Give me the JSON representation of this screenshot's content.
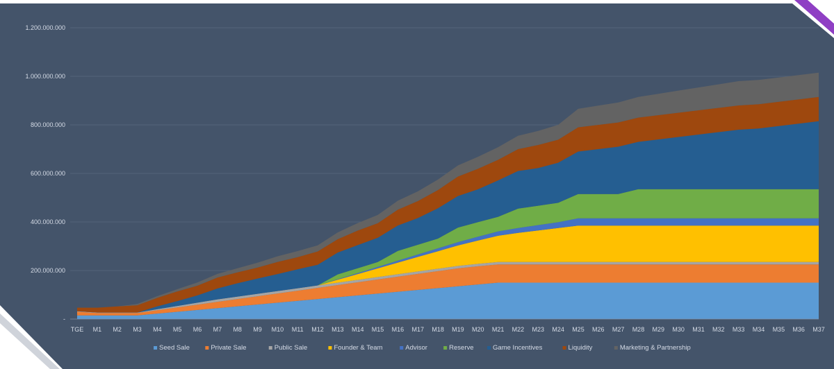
{
  "chart_data": {
    "type": "area",
    "stacked": true,
    "title": "",
    "xlabel": "",
    "ylabel": "",
    "ylim": [
      0,
      1200000000
    ],
    "yticks": [
      0,
      200000000,
      400000000,
      600000000,
      800000000,
      1000000000,
      1200000000
    ],
    "ytick_labels": [
      "-",
      "200.000.000",
      "400.000.000",
      "600.000.000",
      "800.000.000",
      "1.000.000.000",
      "1.200.000.000"
    ],
    "grid": true,
    "legend_position": "bottom",
    "x": [
      "TGE",
      "M1",
      "M2",
      "M3",
      "M4",
      "M5",
      "M6",
      "M7",
      "M8",
      "M9",
      "M10",
      "M11",
      "M12",
      "M13",
      "M14",
      "M15",
      "M16",
      "M17",
      "M18",
      "M19",
      "M20",
      "M21",
      "M22",
      "M23",
      "M24",
      "M25",
      "M26",
      "M27",
      "M28",
      "M29",
      "M30",
      "M31",
      "M32",
      "M33",
      "M34",
      "M35",
      "M36",
      "M37"
    ],
    "series": [
      {
        "name": "Seed Sale",
        "color": "#5b9bd5",
        "values": [
          15000000,
          15000000,
          15000000,
          15000000,
          22500000,
          30000000,
          37500000,
          45000000,
          52500000,
          60000000,
          67500000,
          75000000,
          82500000,
          90000000,
          97500000,
          105000000,
          112500000,
          120000000,
          127500000,
          135000000,
          142500000,
          150000000,
          150000000,
          150000000,
          150000000,
          150000000,
          150000000,
          150000000,
          150000000,
          150000000,
          150000000,
          150000000,
          150000000,
          150000000,
          150000000,
          150000000,
          150000000,
          150000000
        ]
      },
      {
        "name": "Private Sale",
        "color": "#ed7d31",
        "values": [
          15000000,
          10000000,
          10000000,
          10000000,
          14000000,
          18000000,
          22000000,
          26000000,
          30000000,
          34000000,
          38000000,
          42000000,
          46000000,
          50000000,
          54000000,
          58000000,
          62000000,
          66000000,
          70000000,
          74000000,
          75000000,
          75000000,
          75000000,
          75000000,
          75000000,
          75000000,
          75000000,
          75000000,
          75000000,
          75000000,
          75000000,
          75000000,
          75000000,
          75000000,
          75000000,
          75000000,
          75000000,
          75000000
        ]
      },
      {
        "name": "Public Sale",
        "color": "#a5a5a5",
        "values": [
          2000000,
          2000000,
          2000000,
          2000000,
          4000000,
          6000000,
          8000000,
          10000000,
          10000000,
          10000000,
          10000000,
          10000000,
          10000000,
          10000000,
          10000000,
          10000000,
          10000000,
          10000000,
          10000000,
          10000000,
          10000000,
          10000000,
          10000000,
          10000000,
          10000000,
          10000000,
          10000000,
          10000000,
          10000000,
          10000000,
          10000000,
          10000000,
          10000000,
          10000000,
          10000000,
          10000000,
          10000000,
          10000000
        ]
      },
      {
        "name": "Founder & Team",
        "color": "#ffc000",
        "values": [
          0,
          0,
          0,
          0,
          0,
          0,
          0,
          0,
          0,
          0,
          0,
          0,
          0,
          12000000,
          24000000,
          36000000,
          48000000,
          60000000,
          72000000,
          84000000,
          96000000,
          108000000,
          120000000,
          130000000,
          140000000,
          150000000,
          150000000,
          150000000,
          150000000,
          150000000,
          150000000,
          150000000,
          150000000,
          150000000,
          150000000,
          150000000,
          150000000,
          150000000
        ]
      },
      {
        "name": "Advisor",
        "color": "#4472c4",
        "values": [
          0,
          0,
          0,
          0,
          0,
          0,
          0,
          0,
          0,
          0,
          0,
          0,
          0,
          2000000,
          4000000,
          6000000,
          8000000,
          10000000,
          12000000,
          14000000,
          16000000,
          18000000,
          20000000,
          22000000,
          24000000,
          30000000,
          30000000,
          30000000,
          30000000,
          30000000,
          30000000,
          30000000,
          30000000,
          30000000,
          30000000,
          30000000,
          30000000,
          30000000
        ]
      },
      {
        "name": "Reserve",
        "color": "#70ad47",
        "values": [
          0,
          0,
          0,
          0,
          0,
          0,
          0,
          0,
          0,
          0,
          0,
          0,
          0,
          20000000,
          20000000,
          20000000,
          40000000,
          40000000,
          40000000,
          60000000,
          60000000,
          60000000,
          80000000,
          80000000,
          80000000,
          100000000,
          100000000,
          100000000,
          120000000,
          120000000,
          120000000,
          120000000,
          120000000,
          120000000,
          120000000,
          120000000,
          120000000,
          120000000
        ]
      },
      {
        "name": "Game Incentives",
        "color": "#255e91",
        "values": [
          0,
          0,
          0,
          0,
          12000000,
          20000000,
          30000000,
          45000000,
          55000000,
          63000000,
          70000000,
          78000000,
          85000000,
          90000000,
          95000000,
          100000000,
          105000000,
          110000000,
          125000000,
          130000000,
          135000000,
          150000000,
          155000000,
          155000000,
          165000000,
          175000000,
          185000000,
          195000000,
          195000000,
          205000000,
          215000000,
          225000000,
          235000000,
          245000000,
          250000000,
          260000000,
          270000000,
          280000000
        ]
      },
      {
        "name": "Liquidity",
        "color": "#9e480e",
        "values": [
          15000000,
          20000000,
          25000000,
          30000000,
          35000000,
          40000000,
          40000000,
          45000000,
          45000000,
          45000000,
          50000000,
          50000000,
          55000000,
          55000000,
          60000000,
          60000000,
          65000000,
          70000000,
          75000000,
          80000000,
          85000000,
          85000000,
          90000000,
          95000000,
          95000000,
          100000000,
          100000000,
          100000000,
          100000000,
          100000000,
          100000000,
          100000000,
          100000000,
          100000000,
          100000000,
          100000000,
          100000000,
          100000000
        ]
      },
      {
        "name": "Marketing & Partnership",
        "color": "#636363",
        "values": [
          0,
          0,
          0,
          5000000,
          7000000,
          9000000,
          13000000,
          15000000,
          17000000,
          20000000,
          23000000,
          25000000,
          25000000,
          28000000,
          31000000,
          34000000,
          37000000,
          40000000,
          43000000,
          46000000,
          49000000,
          52000000,
          55000000,
          58000000,
          61000000,
          76000000,
          79000000,
          82000000,
          85000000,
          88000000,
          91000000,
          94000000,
          97000000,
          100000000,
          100000000,
          100000000,
          100000000,
          100000000
        ]
      }
    ]
  }
}
